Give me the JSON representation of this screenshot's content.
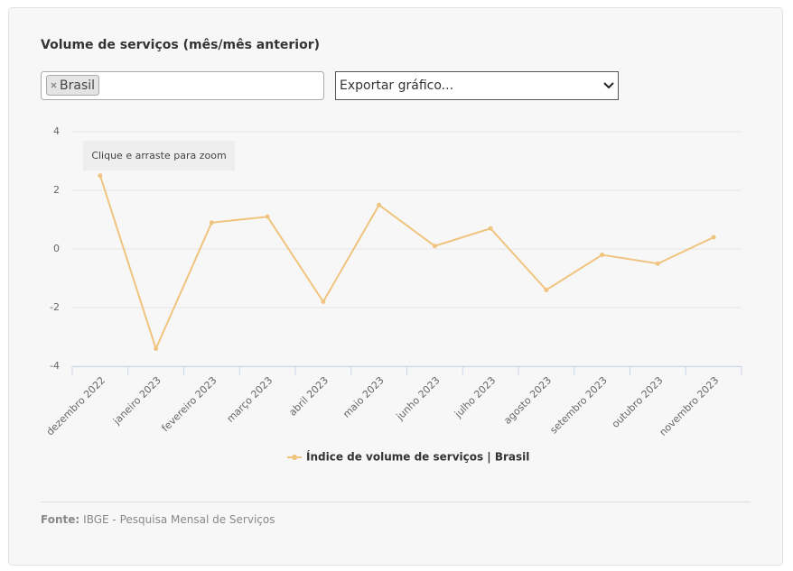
{
  "chart_data": {
    "type": "line",
    "title": "Volume de serviços (mês/mês anterior)",
    "categories": [
      "dezembro 2022",
      "janeiro 2023",
      "fevereiro 2023",
      "março 2023",
      "abril 2023",
      "maio 2023",
      "junho 2023",
      "julho 2023",
      "agosto 2023",
      "setembro 2023",
      "outubro 2023",
      "novembro 2023"
    ],
    "series": [
      {
        "name": "Índice de volume de serviços | Brasil",
        "color": "#f0c47e",
        "values": [
          2.5,
          -3.4,
          0.9,
          1.1,
          -1.8,
          1.5,
          0.1,
          0.7,
          -1.4,
          -0.2,
          -0.5,
          0.4
        ]
      }
    ],
    "ylim": [
      -4,
      4
    ],
    "yticks": [
      -4,
      -2,
      0,
      2,
      4
    ],
    "grid": true
  },
  "filter": {
    "tags": [
      "Brasil"
    ]
  },
  "export_select": "Exportar gráfico...",
  "zoom_hint": "Clique e arraste para zoom",
  "footer": {
    "label": "Fonte:",
    "text": "IBGE - Pesquisa Mensal de Serviços"
  }
}
